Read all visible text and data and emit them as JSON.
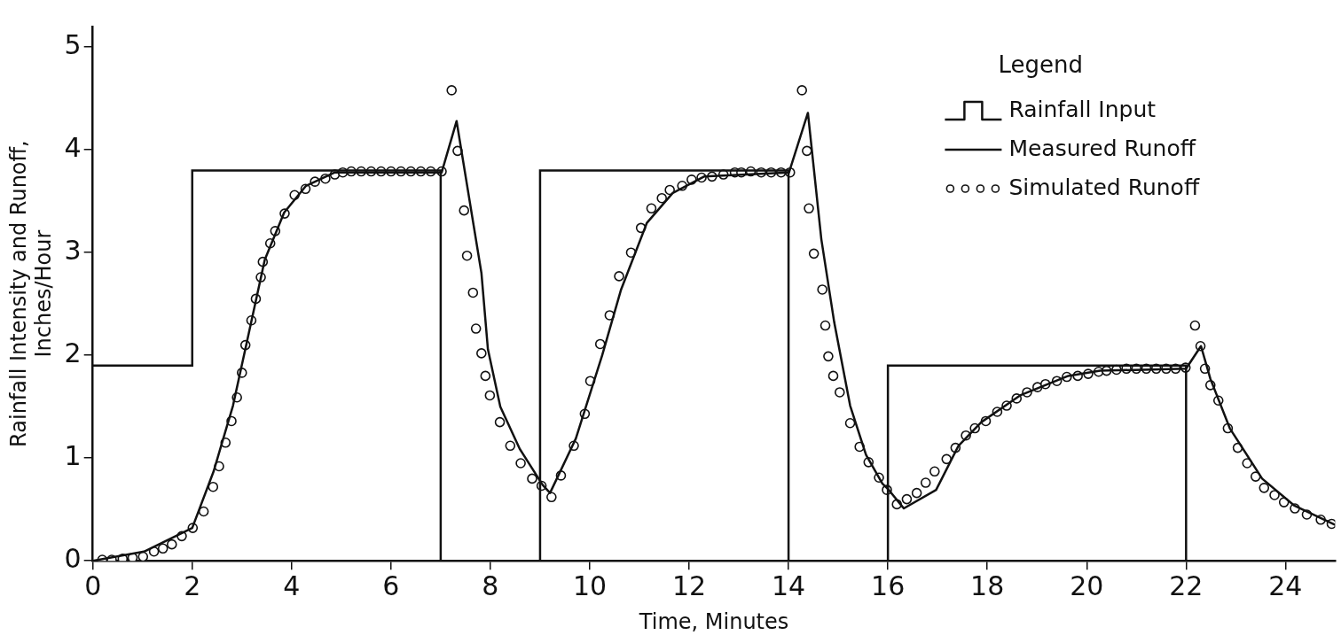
{
  "chart_data": {
    "type": "line",
    "xlabel": "Time, Minutes",
    "ylabel": "Rainfall Intensity and Runoff,\nInches/Hour",
    "legend_title": "Legend",
    "legend": "top right",
    "grid": false,
    "xlim": [
      0,
      25
    ],
    "xticks": [
      0,
      2,
      4,
      6,
      8,
      10,
      12,
      14,
      16,
      18,
      20,
      22,
      24
    ],
    "ylim": [
      0,
      5.2
    ],
    "yticks": [
      0,
      1,
      2,
      3,
      4,
      5
    ],
    "series": [
      {
        "name": "Rainfall Input",
        "type": "step",
        "color": "#111111",
        "x": [
          0,
          2,
          7,
          9,
          14,
          16,
          22
        ],
        "values": [
          1.9,
          3.8,
          0,
          3.8,
          0,
          1.9,
          0
        ]
      },
      {
        "name": "Measured Runoff",
        "type": "line",
        "color": "#111111",
        "marker": "none",
        "x": [
          0,
          1.03,
          2.0,
          2.43,
          2.82,
          3.14,
          3.46,
          3.85,
          4.29,
          4.87,
          7.02,
          7.32,
          7.82,
          7.95,
          8.2,
          8.59,
          9.05,
          9.2,
          9.72,
          10.25,
          10.63,
          11.15,
          11.67,
          12.3,
          14.01,
          14.39,
          14.66,
          14.92,
          15.24,
          15.56,
          15.89,
          16.0,
          16.32,
          16.97,
          17.42,
          17.88,
          18.66,
          19.63,
          20.27,
          22.0,
          22.3,
          22.49,
          22.88,
          23.53,
          24.17,
          25.0
        ],
        "values": [
          0,
          0.09,
          0.32,
          0.87,
          1.51,
          2.22,
          2.93,
          3.39,
          3.65,
          3.78,
          3.78,
          4.28,
          2.8,
          2.06,
          1.5,
          1.09,
          0.74,
          0.66,
          1.19,
          2.0,
          2.64,
          3.29,
          3.58,
          3.74,
          3.78,
          4.36,
          3.13,
          2.32,
          1.51,
          1.03,
          0.75,
          0.7,
          0.51,
          0.69,
          1.12,
          1.35,
          1.61,
          1.8,
          1.85,
          1.87,
          2.09,
          1.77,
          1.29,
          0.8,
          0.54,
          0.35
        ]
      },
      {
        "name": "Simulated Runoff",
        "type": "scatter",
        "color": "#111111",
        "marker": "circle",
        "x": [
          0.19,
          0.38,
          0.6,
          0.8,
          1.01,
          1.23,
          1.41,
          1.59,
          1.79,
          2.01,
          2.23,
          2.42,
          2.54,
          2.67,
          2.79,
          2.9,
          3.0,
          3.07,
          3.19,
          3.28,
          3.38,
          3.42,
          3.57,
          3.67,
          3.86,
          4.06,
          4.28,
          4.47,
          4.68,
          4.87,
          5.03,
          5.2,
          5.4,
          5.6,
          5.8,
          6.0,
          6.2,
          6.4,
          6.6,
          6.8,
          7.02,
          7.22,
          7.34,
          7.47,
          7.53,
          7.65,
          7.71,
          7.82,
          7.9,
          7.99,
          8.19,
          8.4,
          8.61,
          8.84,
          9.03,
          9.23,
          9.42,
          9.68,
          9.9,
          10.01,
          10.21,
          10.4,
          10.59,
          10.83,
          11.03,
          11.24,
          11.45,
          11.61,
          11.86,
          12.05,
          12.25,
          12.46,
          12.69,
          12.92,
          13.05,
          13.24,
          13.45,
          13.65,
          13.85,
          14.03,
          14.27,
          14.37,
          14.41,
          14.51,
          14.68,
          14.74,
          14.8,
          14.9,
          15.03,
          15.24,
          15.43,
          15.61,
          15.82,
          15.98,
          16.18,
          16.38,
          16.58,
          16.76,
          16.94,
          17.18,
          17.36,
          17.57,
          17.75,
          17.97,
          18.2,
          18.39,
          18.59,
          18.8,
          19.01,
          19.17,
          19.4,
          19.6,
          19.82,
          20.03,
          20.24,
          20.4,
          20.6,
          20.8,
          21.0,
          21.2,
          21.4,
          21.6,
          21.79,
          21.99,
          22.18,
          22.29,
          22.38,
          22.49,
          22.65,
          22.84,
          23.04,
          23.23,
          23.4,
          23.57,
          23.78,
          23.97,
          24.19,
          24.43,
          24.71,
          24.93
        ],
        "values": [
          0.01,
          0.01,
          0.02,
          0.03,
          0.04,
          0.09,
          0.12,
          0.16,
          0.24,
          0.32,
          0.48,
          0.72,
          0.92,
          1.15,
          1.36,
          1.59,
          1.83,
          2.1,
          2.34,
          2.55,
          2.76,
          2.91,
          3.09,
          3.21,
          3.38,
          3.56,
          3.62,
          3.69,
          3.72,
          3.76,
          3.78,
          3.79,
          3.79,
          3.79,
          3.79,
          3.79,
          3.79,
          3.79,
          3.79,
          3.79,
          3.79,
          4.58,
          3.99,
          3.41,
          2.97,
          2.61,
          2.26,
          2.02,
          1.8,
          1.61,
          1.35,
          1.12,
          0.95,
          0.8,
          0.73,
          0.62,
          0.83,
          1.12,
          1.43,
          1.75,
          2.11,
          2.39,
          2.77,
          3.0,
          3.24,
          3.43,
          3.53,
          3.61,
          3.65,
          3.71,
          3.73,
          3.74,
          3.76,
          3.78,
          3.78,
          3.79,
          3.78,
          3.78,
          3.78,
          3.78,
          4.58,
          3.99,
          3.43,
          2.99,
          2.64,
          2.29,
          1.99,
          1.8,
          1.64,
          1.34,
          1.11,
          0.96,
          0.81,
          0.69,
          0.55,
          0.6,
          0.66,
          0.76,
          0.87,
          0.99,
          1.1,
          1.22,
          1.29,
          1.36,
          1.45,
          1.51,
          1.58,
          1.64,
          1.69,
          1.72,
          1.75,
          1.79,
          1.8,
          1.82,
          1.84,
          1.85,
          1.86,
          1.87,
          1.87,
          1.87,
          1.87,
          1.87,
          1.87,
          1.88,
          2.29,
          2.09,
          1.87,
          1.71,
          1.56,
          1.29,
          1.1,
          0.95,
          0.82,
          0.71,
          0.64,
          0.57,
          0.51,
          0.45,
          0.4,
          0.36
        ]
      }
    ]
  }
}
